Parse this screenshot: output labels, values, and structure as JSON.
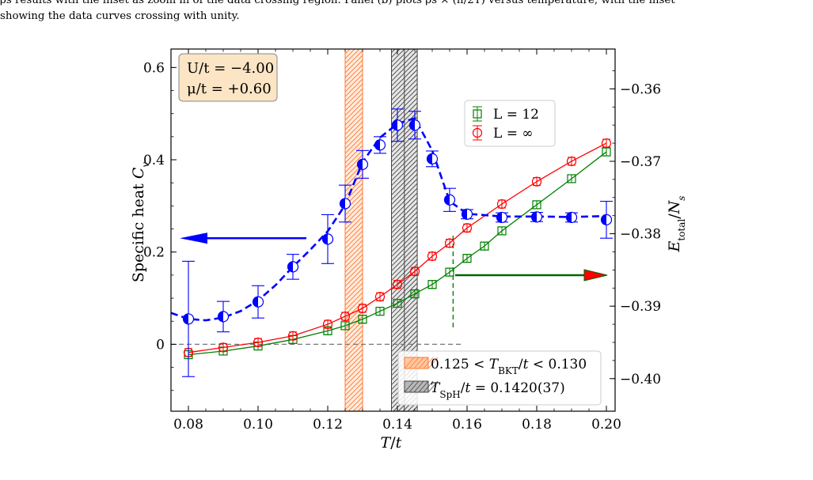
{
  "caption": {
    "line1": "ρs results with the inset as zoom in of the data crossing region. Panel (b) plots ρs × (π/2T) versus temperature, with the inset",
    "line2": "showing the data curves crossing with unity."
  },
  "chart_data": {
    "type": "scatter",
    "xlabel": "T/t",
    "ylabel_left": "Specific heat C_v",
    "ylabel_right": "E_total/N_s",
    "xlim": [
      0.075,
      0.2025
    ],
    "ylim_left": [
      -0.145,
      0.64
    ],
    "ylim_right": [
      -0.4045,
      -0.3545
    ],
    "xticks": [
      0.08,
      0.1,
      0.12,
      0.14,
      0.16,
      0.18,
      0.2
    ],
    "xtick_labels": [
      "0.08",
      "0.10",
      "0.12",
      "0.14",
      "0.16",
      "0.18",
      "0.20"
    ],
    "yticks_left": [
      0,
      0.2,
      0.4,
      0.6
    ],
    "ytick_labels_left": [
      "0",
      "0.2",
      "0.4",
      "0.6"
    ],
    "yticks_right": [
      -0.4,
      -0.39,
      -0.38,
      -0.37,
      -0.36
    ],
    "ytick_labels_right": [
      "−0.40",
      "−0.39",
      "−0.38",
      "−0.37",
      "−0.36"
    ],
    "params": {
      "line1": "U/t = −4.00",
      "line2": "μ/t = +0.60"
    },
    "specific_heat": {
      "axis": "left",
      "color": "#0000ff",
      "x": [
        0.08,
        0.09,
        0.1,
        0.11,
        0.12,
        0.125,
        0.13,
        0.135,
        0.14,
        0.145,
        0.15,
        0.155,
        0.16,
        0.17,
        0.18,
        0.19,
        0.2
      ],
      "y": [
        0.055,
        0.06,
        0.092,
        0.168,
        0.228,
        0.305,
        0.39,
        0.432,
        0.475,
        0.475,
        0.402,
        0.313,
        0.282,
        0.275,
        0.276,
        0.275,
        0.27
      ],
      "err": [
        0.125,
        0.033,
        0.035,
        0.027,
        0.053,
        0.04,
        0.03,
        0.018,
        0.035,
        0.03,
        0.017,
        0.025,
        0.01,
        0.01,
        0.01,
        0.01,
        0.04
      ],
      "fit_x": [
        0.075,
        0.08,
        0.085,
        0.09,
        0.095,
        0.1,
        0.105,
        0.11,
        0.115,
        0.12,
        0.125,
        0.13,
        0.135,
        0.14,
        0.145,
        0.15,
        0.155,
        0.16,
        0.17,
        0.18,
        0.19,
        0.2
      ],
      "fit_y": [
        0.068,
        0.055,
        0.052,
        0.058,
        0.072,
        0.095,
        0.128,
        0.168,
        0.205,
        0.245,
        0.302,
        0.395,
        0.448,
        0.478,
        0.49,
        0.42,
        0.31,
        0.283,
        0.277,
        0.277,
        0.276,
        0.278
      ]
    },
    "series": [
      {
        "name": "L = 12",
        "axis": "right",
        "color": "#008000",
        "marker": "square",
        "x": [
          0.08,
          0.09,
          0.1,
          0.11,
          0.12,
          0.125,
          0.13,
          0.135,
          0.14,
          0.145,
          0.15,
          0.155,
          0.16,
          0.165,
          0.17,
          0.18,
          0.19,
          0.2
        ],
        "y": [
          -0.3967,
          -0.3962,
          -0.3955,
          -0.3946,
          -0.3934,
          -0.3927,
          -0.3918,
          -0.3907,
          -0.3896,
          -0.3883,
          -0.387,
          -0.3853,
          -0.3834,
          -0.3817,
          -0.3796,
          -0.376,
          -0.3724,
          -0.3687
        ]
      },
      {
        "name": "L = ∞",
        "axis": "right",
        "color": "#ff0000",
        "marker": "circle",
        "x": [
          0.08,
          0.09,
          0.1,
          0.11,
          0.12,
          0.125,
          0.13,
          0.135,
          0.14,
          0.145,
          0.15,
          0.155,
          0.16,
          0.17,
          0.18,
          0.19,
          0.2
        ],
        "y": [
          -0.3964,
          -0.3957,
          -0.395,
          -0.3941,
          -0.3925,
          -0.3914,
          -0.3903,
          -0.3887,
          -0.387,
          -0.3852,
          -0.3831,
          -0.3813,
          -0.3792,
          -0.3759,
          -0.3728,
          -0.37,
          -0.3675
        ]
      }
    ],
    "bands": [
      {
        "label": "0.125 < T_BKT/t < 0.130",
        "x0": 0.125,
        "x1": 0.13,
        "color": "#ff8844",
        "hatch": true
      },
      {
        "label": "T_SpH/t = 0.1420(37)",
        "x0": 0.1383,
        "x1": 0.1457,
        "center": 0.142,
        "color": "#888888",
        "hatch": true
      }
    ],
    "zero_line": 0,
    "crossing_x": 0.156,
    "arrows": [
      {
        "points_to": "left axis",
        "color": "#0000ff"
      },
      {
        "points_to": "right axis",
        "color": "#006400"
      }
    ],
    "legend_position": "top-right",
    "legend_bands_position": "bottom-right"
  }
}
